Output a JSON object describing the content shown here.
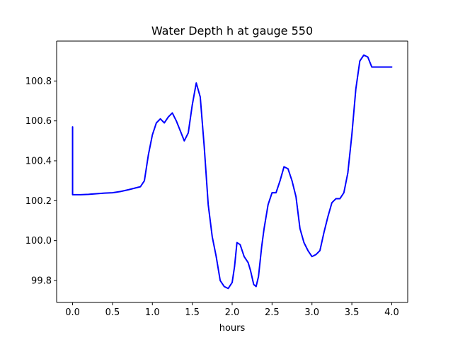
{
  "chart_data": {
    "type": "line",
    "title": "Water Depth h at gauge 550",
    "xlabel": "hours",
    "ylabel": "",
    "xlim": [
      -0.2,
      4.2
    ],
    "ylim": [
      99.69,
      101.0
    ],
    "grid": false,
    "x_ticks": [
      0.0,
      0.5,
      1.0,
      1.5,
      2.0,
      2.5,
      3.0,
      3.5,
      4.0
    ],
    "x_tick_labels": [
      "0.0",
      "0.5",
      "1.0",
      "1.5",
      "2.0",
      "2.5",
      "3.0",
      "3.5",
      "4.0"
    ],
    "y_ticks": [
      99.8,
      100.0,
      100.2,
      100.4,
      100.6,
      100.8
    ],
    "y_tick_labels": [
      "99.8",
      "100.0",
      "100.2",
      "100.4",
      "100.6",
      "100.8"
    ],
    "series": [
      {
        "color": "#0000ff",
        "x": [
          0.0,
          0.0,
          0.1,
          0.2,
          0.3,
          0.4,
          0.5,
          0.55,
          0.6,
          0.7,
          0.8,
          0.85,
          0.9,
          0.95,
          1.0,
          1.05,
          1.1,
          1.15,
          1.2,
          1.25,
          1.3,
          1.35,
          1.4,
          1.45,
          1.5,
          1.55,
          1.6,
          1.65,
          1.7,
          1.75,
          1.8,
          1.85,
          1.9,
          1.95,
          2.0,
          2.03,
          2.06,
          2.1,
          2.15,
          2.2,
          2.23,
          2.27,
          2.3,
          2.33,
          2.37,
          2.4,
          2.45,
          2.5,
          2.55,
          2.6,
          2.65,
          2.7,
          2.75,
          2.8,
          2.85,
          2.9,
          2.95,
          3.0,
          3.05,
          3.1,
          3.15,
          3.2,
          3.25,
          3.3,
          3.35,
          3.4,
          3.45,
          3.5,
          3.55,
          3.6,
          3.65,
          3.7,
          3.75,
          3.8,
          3.85,
          3.9,
          3.95,
          4.0
        ],
        "y": [
          100.57,
          100.23,
          100.23,
          100.232,
          100.235,
          100.238,
          100.24,
          100.243,
          100.246,
          100.255,
          100.265,
          100.27,
          100.3,
          100.43,
          100.53,
          100.59,
          100.61,
          100.59,
          100.62,
          100.64,
          100.6,
          100.55,
          100.5,
          100.54,
          100.68,
          100.79,
          100.72,
          100.47,
          100.18,
          100.02,
          99.92,
          99.8,
          99.77,
          99.76,
          99.79,
          99.87,
          99.99,
          99.98,
          99.92,
          99.89,
          99.85,
          99.78,
          99.77,
          99.82,
          99.97,
          100.06,
          100.18,
          100.24,
          100.24,
          100.3,
          100.37,
          100.36,
          100.3,
          100.22,
          100.06,
          99.99,
          99.95,
          99.92,
          99.93,
          99.95,
          100.04,
          100.12,
          100.19,
          100.21,
          100.21,
          100.24,
          100.34,
          100.53,
          100.76,
          100.9,
          100.93,
          100.92,
          100.87,
          100.87,
          100.87,
          100.87,
          100.87,
          100.87
        ]
      }
    ]
  }
}
